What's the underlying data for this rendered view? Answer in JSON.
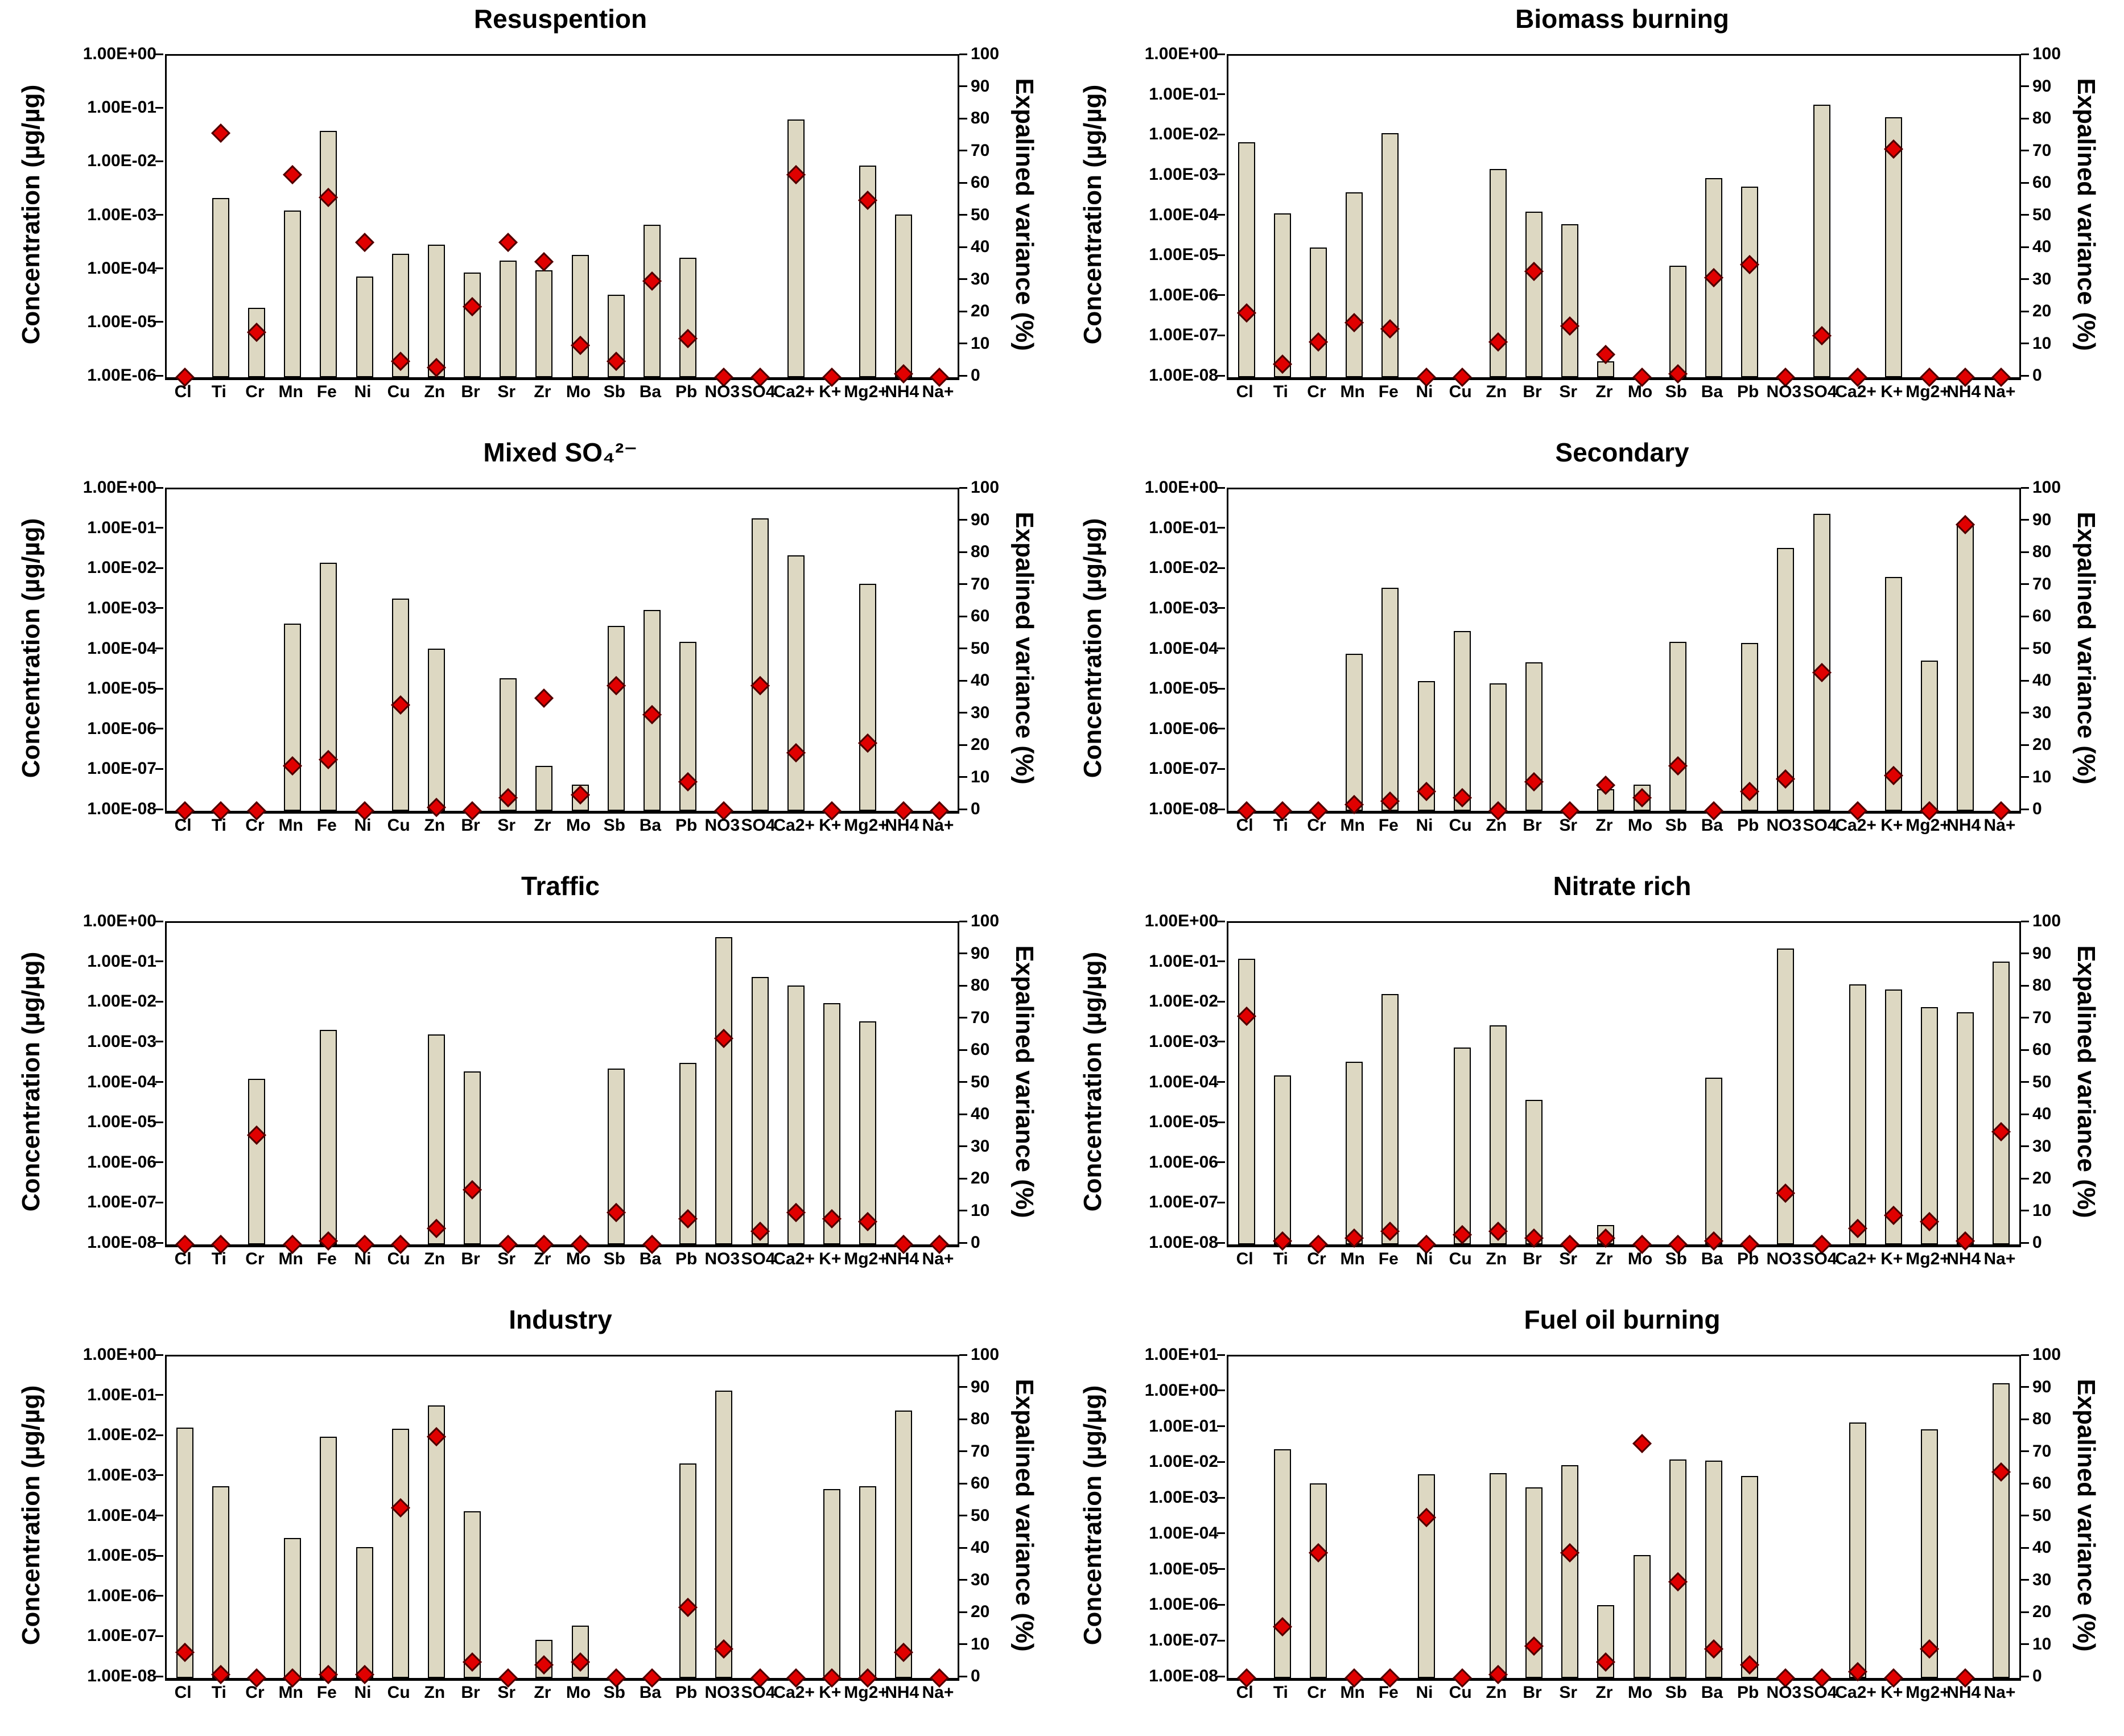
{
  "figure": {
    "description": "Source profiles: concentration and explained variance per species",
    "colors": {
      "background": "#ffffff",
      "bar_fill": "#ddd8c2",
      "bar_border": "#000000",
      "diamond_fill": "#e00000",
      "diamond_border": "#4d0000",
      "axis": "#000000"
    }
  },
  "chart_data": [
    {
      "type": "bar",
      "secondary_type": "scatter",
      "title": "Resuspention",
      "ylabel_left": "Concentration (µg/µg)",
      "ylabel_right": "Expalined variance (%)",
      "y_left_max_exp": 0,
      "y_left_min_exp": -6,
      "right_axis": {
        "min": 0,
        "max": 100,
        "step": 10
      },
      "grid": false,
      "categories": [
        "Cl",
        "Ti",
        "Cr",
        "Mn",
        "Fe",
        "Ni",
        "Cu",
        "Zn",
        "Br",
        "Sr",
        "Zr",
        "Mo",
        "Sb",
        "Ba",
        "Pb",
        "NO3",
        "SO4",
        "Ca2+",
        "K+",
        "Mg2+",
        "NH4",
        "Na+"
      ],
      "bars": [
        null,
        0.0022,
        2e-05,
        0.0013,
        0.04,
        7.5e-05,
        0.0002,
        0.0003,
        9e-05,
        0.00015,
        0.0001,
        0.00019,
        3.5e-05,
        0.0007,
        0.00017,
        null,
        null,
        0.065,
        null,
        0.009,
        0.0011,
        null
      ],
      "variance": [
        0,
        76,
        14,
        63,
        56,
        42,
        5,
        3,
        22,
        42,
        36,
        10,
        5,
        30,
        12,
        0,
        0,
        63,
        0,
        55,
        1,
        0
      ]
    },
    {
      "type": "bar",
      "secondary_type": "scatter",
      "title": "Biomass burning",
      "ylabel_left": "Concentration (µg/µg)",
      "ylabel_right": "Expalined variance (%)",
      "y_left_max_exp": 0,
      "y_left_min_exp": -8,
      "right_axis": {
        "min": 0,
        "max": 100,
        "step": 10
      },
      "grid": false,
      "categories": [
        "Cl",
        "Ti",
        "Cr",
        "Mn",
        "Fe",
        "Ni",
        "Cu",
        "Zn",
        "Br",
        "Sr",
        "Zr",
        "Mo",
        "Sb",
        "Ba",
        "Pb",
        "NO3",
        "SO4",
        "Ca2+",
        "K+",
        "Mg2+",
        "NH4",
        "Na+"
      ],
      "bars": [
        0.007,
        0.00012,
        1.7e-05,
        0.0004,
        0.012,
        null,
        null,
        0.0015,
        0.00013,
        6.5e-05,
        2.5e-08,
        null,
        6e-06,
        0.0009,
        0.00055,
        null,
        0.06,
        null,
        0.03,
        null,
        null,
        null
      ],
      "variance": [
        20,
        4,
        11,
        17,
        15,
        0,
        0,
        11,
        33,
        16,
        7,
        0,
        1,
        31,
        35,
        0,
        13,
        0,
        71,
        0,
        0,
        0
      ]
    },
    {
      "type": "bar",
      "secondary_type": "scatter",
      "title": "Mixed SO₄²⁻",
      "ylabel_left": "Concentration (µg/µg)",
      "ylabel_right": "Expalined variance (%)",
      "y_left_max_exp": 0,
      "y_left_min_exp": -8,
      "right_axis": {
        "min": 0,
        "max": 100,
        "step": 10
      },
      "grid": false,
      "categories": [
        "Cl",
        "Ti",
        "Cr",
        "Mn",
        "Fe",
        "Ni",
        "Cu",
        "Zn",
        "Br",
        "Sr",
        "Zr",
        "Mo",
        "Sb",
        "Ba",
        "Pb",
        "NO3",
        "SO4",
        "Ca2+",
        "K+",
        "Mg2+",
        "NH4",
        "Na+"
      ],
      "bars": [
        null,
        null,
        null,
        0.00045,
        0.015,
        null,
        0.0019,
        0.00011,
        null,
        2e-05,
        1.3e-07,
        4.5e-08,
        0.0004,
        0.001,
        0.00016,
        null,
        0.19,
        0.023,
        null,
        0.0045,
        null,
        null
      ],
      "variance": [
        0,
        0,
        0,
        14,
        16,
        0,
        33,
        1,
        0,
        4,
        35,
        5,
        39,
        30,
        9,
        0,
        39,
        18,
        0,
        21,
        0,
        0
      ]
    },
    {
      "type": "bar",
      "secondary_type": "scatter",
      "title": "Secondary",
      "ylabel_left": "Concentration (µg/µg)",
      "ylabel_right": "Expalined variance (%)",
      "y_left_max_exp": 0,
      "y_left_min_exp": -8,
      "right_axis": {
        "min": 0,
        "max": 100,
        "step": 10
      },
      "grid": false,
      "categories": [
        "Cl",
        "Ti",
        "Cr",
        "Mn",
        "Fe",
        "Ni",
        "Cu",
        "Zn",
        "Br",
        "Sr",
        "Zr",
        "Mo",
        "Sb",
        "Ba",
        "Pb",
        "NO3",
        "SO4",
        "Ca2+",
        "K+",
        "Mg2+",
        "NH4",
        "Na+"
      ],
      "bars": [
        null,
        null,
        null,
        8e-05,
        0.0035,
        1.7e-05,
        0.0003,
        1.5e-05,
        5e-05,
        null,
        3.5e-08,
        4.5e-08,
        0.00016,
        null,
        0.00015,
        0.035,
        0.25,
        null,
        0.0065,
        5.5e-05,
        0.13,
        null
      ],
      "variance": [
        0,
        0,
        0,
        2,
        3,
        6,
        4,
        0,
        9,
        0,
        8,
        4,
        14,
        0,
        6,
        10,
        43,
        0,
        11,
        0,
        89,
        0
      ]
    },
    {
      "type": "bar",
      "secondary_type": "scatter",
      "title": "Traffic",
      "ylabel_left": "Concentration (µg/µg)",
      "ylabel_right": "Expalined variance (%)",
      "y_left_max_exp": 0,
      "y_left_min_exp": -8,
      "right_axis": {
        "min": 0,
        "max": 100,
        "step": 10
      },
      "grid": false,
      "categories": [
        "Cl",
        "Ti",
        "Cr",
        "Mn",
        "Fe",
        "Ni",
        "Cu",
        "Zn",
        "Br",
        "Sr",
        "Zr",
        "Mo",
        "Sb",
        "Ba",
        "Pb",
        "NO3",
        "SO4",
        "Ca2+",
        "K+",
        "Mg2+",
        "NH4",
        "Na+"
      ],
      "bars": [
        null,
        null,
        0.00013,
        null,
        0.0022,
        null,
        null,
        0.0017,
        0.0002,
        null,
        null,
        null,
        0.00024,
        null,
        0.00033,
        0.45,
        0.045,
        0.028,
        0.01,
        0.0035,
        null,
        null
      ],
      "variance": [
        0,
        0,
        34,
        0,
        1,
        0,
        0,
        5,
        17,
        0,
        0,
        0,
        10,
        0,
        8,
        64,
        4,
        10,
        8,
        7,
        0,
        0
      ]
    },
    {
      "type": "bar",
      "secondary_type": "scatter",
      "title": "Nitrate rich",
      "ylabel_left": "Concentration (µg/µg)",
      "ylabel_right": "Expalined variance (%)",
      "y_left_max_exp": 0,
      "y_left_min_exp": -8,
      "right_axis": {
        "min": 0,
        "max": 100,
        "step": 10
      },
      "grid": false,
      "categories": [
        "Cl",
        "Ti",
        "Cr",
        "Mn",
        "Fe",
        "Ni",
        "Cu",
        "Zn",
        "Br",
        "Sr",
        "Zr",
        "Mo",
        "Sb",
        "Ba",
        "Pb",
        "NO3",
        "SO4",
        "Ca2+",
        "K+",
        "Mg2+",
        "NH4",
        "Na+"
      ],
      "bars": [
        0.13,
        0.00016,
        null,
        0.00035,
        0.017,
        null,
        0.0008,
        0.0028,
        4e-05,
        null,
        3e-08,
        null,
        null,
        0.00014,
        null,
        0.23,
        null,
        0.03,
        0.022,
        0.008,
        0.006,
        0.11
      ],
      "variance": [
        71,
        1,
        0,
        2,
        4,
        0,
        3,
        4,
        2,
        0,
        2,
        0,
        0,
        1,
        0,
        16,
        0,
        5,
        9,
        7,
        1,
        35
      ]
    },
    {
      "type": "bar",
      "secondary_type": "scatter",
      "title": "Industry",
      "ylabel_left": "Concentration (µg/µg)",
      "ylabel_right": "Expalined variance (%)",
      "y_left_max_exp": 0,
      "y_left_min_exp": -8,
      "right_axis": {
        "min": 0,
        "max": 100,
        "step": 10
      },
      "grid": false,
      "categories": [
        "Cl",
        "Ti",
        "Cr",
        "Mn",
        "Fe",
        "Ni",
        "Cu",
        "Zn",
        "Br",
        "Sr",
        "Zr",
        "Mo",
        "Sb",
        "Ba",
        "Pb",
        "NO3",
        "SO4",
        "Ca2+",
        "K+",
        "Mg2+",
        "NH4",
        "Na+"
      ],
      "bars": [
        0.017,
        0.0006,
        null,
        3e-05,
        0.01,
        1.8e-05,
        0.016,
        0.06,
        0.00014,
        null,
        9e-08,
        2e-07,
        null,
        null,
        0.0022,
        0.14,
        null,
        null,
        0.0005,
        0.0006,
        0.045,
        null
      ],
      "variance": [
        8,
        1,
        0,
        0,
        1,
        1,
        53,
        75,
        5,
        0,
        4,
        5,
        0,
        0,
        22,
        9,
        0,
        0,
        0,
        0,
        8,
        0
      ]
    },
    {
      "type": "bar",
      "secondary_type": "scatter",
      "title": "Fuel oil burning",
      "ylabel_left": "Concentration (µg/µg)",
      "ylabel_right": "Expalined variance (%)",
      "y_left_max_exp": 1,
      "y_left_min_exp": -8,
      "right_axis": {
        "min": 0,
        "max": 100,
        "step": 10
      },
      "grid": false,
      "categories": [
        "Cl",
        "Ti",
        "Cr",
        "Mn",
        "Fe",
        "Ni",
        "Cu",
        "Zn",
        "Br",
        "Sr",
        "Zr",
        "Mo",
        "Sb",
        "Ba",
        "Pb",
        "NO3",
        "SO4",
        "Ca2+",
        "K+",
        "Mg2+",
        "NH4",
        "Na+"
      ],
      "bars": [
        null,
        0.025,
        0.0028,
        null,
        null,
        0.005,
        null,
        0.0055,
        0.0022,
        0.009,
        1.1e-06,
        2.8e-05,
        0.013,
        0.012,
        0.0045,
        null,
        null,
        0.14,
        null,
        0.09,
        null,
        1.8
      ],
      "variance": [
        0,
        16,
        39,
        0,
        0,
        50,
        0,
        1,
        10,
        39,
        5,
        73,
        30,
        9,
        4,
        0,
        0,
        2,
        0,
        9,
        0,
        64
      ]
    }
  ]
}
